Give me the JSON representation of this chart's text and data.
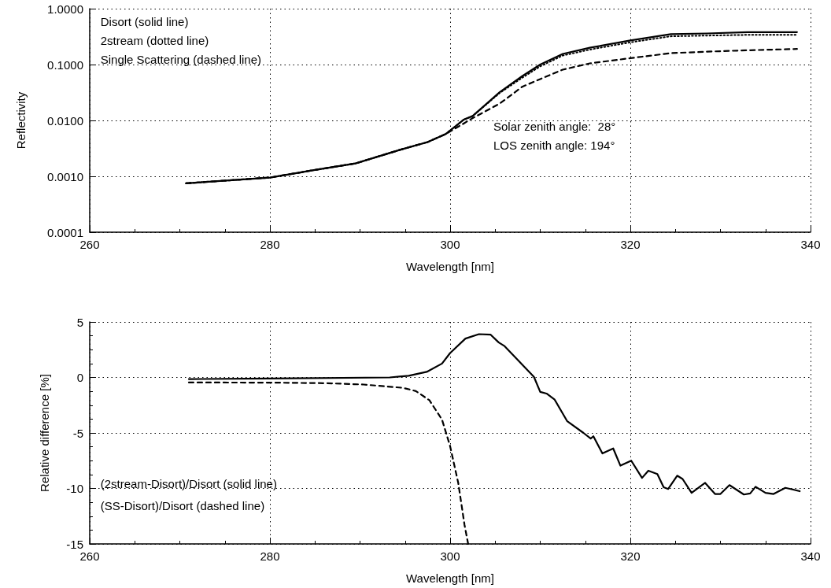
{
  "chart_data": [
    {
      "type": "line",
      "xlabel": "Wavelength [nm]",
      "ylabel": "Reflectivity",
      "log": "y",
      "grid": true,
      "xlim": [
        260,
        340
      ],
      "xticks": [
        260,
        280,
        300,
        320,
        340
      ],
      "ylim": [
        0.0001,
        1
      ],
      "yticks": [
        {
          "value": 0.0001,
          "label": "0.0001"
        },
        {
          "value": 0.001,
          "label": "0.0010"
        },
        {
          "value": 0.01,
          "label": "0.0100"
        },
        {
          "value": 0.1,
          "label": "0.1000"
        },
        {
          "value": 1,
          "label": "1.0000"
        }
      ],
      "annotations": [
        "Disort (solid line)",
        "2stream (dotted line)",
        "Single Scattering (dashed line)",
        "Solar zenith angle:  28°",
        "LOS zenith angle: 194°"
      ],
      "series": [
        {
          "color": "#000000",
          "line_style": "solid",
          "x": [
            270.7,
            280,
            285,
            289.5,
            294.5,
            297.5,
            299.5,
            301.5,
            302.5,
            305.5,
            308,
            310,
            312.5,
            315.5,
            320,
            324.5,
            328.5,
            333,
            338.5
          ],
          "values": [
            0.00075,
            0.00095,
            0.0013,
            0.0017,
            0.003,
            0.0041,
            0.0057,
            0.0103,
            0.012,
            0.032,
            0.062,
            0.1,
            0.155,
            0.2,
            0.27,
            0.35,
            0.36,
            0.38,
            0.38
          ]
        },
        {
          "color": "#000000",
          "line_style": "dotted",
          "x": [
            270.7,
            280,
            285,
            289.5,
            294.5,
            297.5,
            299.5,
            301.5,
            302.5,
            305.5,
            308,
            310,
            312.5,
            315.5,
            320,
            324.5,
            328.5,
            333,
            338.5
          ],
          "values": [
            0.00075,
            0.00095,
            0.0013,
            0.0017,
            0.003,
            0.0041,
            0.0057,
            0.0103,
            0.012,
            0.031,
            0.058,
            0.093,
            0.145,
            0.185,
            0.25,
            0.32,
            0.33,
            0.34,
            0.34
          ]
        },
        {
          "color": "#000000",
          "line_style": "dashed",
          "x": [
            270.7,
            280,
            285,
            289.5,
            294.5,
            297.5,
            299.5,
            301.5,
            302.5,
            305.5,
            308,
            310,
            312.5,
            315.5,
            320,
            324.5,
            328.5,
            333,
            338.5
          ],
          "values": [
            0.00075,
            0.00095,
            0.0013,
            0.0017,
            0.003,
            0.0041,
            0.0057,
            0.0088,
            0.011,
            0.02,
            0.04,
            0.055,
            0.081,
            0.105,
            0.13,
            0.16,
            0.17,
            0.18,
            0.19
          ]
        }
      ]
    },
    {
      "type": "line",
      "xlabel": "Wavelength [nm]",
      "ylabel": "Relative difference [%]",
      "grid": true,
      "xlim": [
        260,
        340
      ],
      "xticks": [
        260,
        280,
        300,
        320,
        340
      ],
      "ylim": [
        -15,
        5
      ],
      "yticks": [
        -15,
        -10,
        -5,
        0,
        5
      ],
      "annotations": [
        "(2stream-Disort)/Disort (solid line)",
        "(SS-Disort)/Disort (dashed line)"
      ],
      "series": [
        {
          "color": "#000000",
          "line_style": "solid",
          "x": [
            271,
            280,
            293.3,
            295.4,
            297.4,
            299.1,
            300,
            301.7,
            303.2,
            304.5,
            305.4,
            306,
            309.3,
            310,
            310.7,
            311.6,
            313,
            314.8,
            315.6,
            315.9,
            316.9,
            318.1,
            318.9,
            320.1,
            321.3,
            322,
            323,
            323.7,
            324.2,
            325.2,
            325.8,
            326.8,
            328.3,
            329.4,
            330,
            331,
            332.6,
            333.3,
            333.9,
            335,
            335.9,
            337.2,
            337.8,
            338.8
          ],
          "values": [
            -0.15,
            -0.1,
            0,
            0.15,
            0.5,
            1.25,
            2.2,
            3.5,
            3.9,
            3.85,
            3.15,
            2.85,
            0.05,
            -1.3,
            -1.45,
            -2,
            -3.95,
            -5,
            -5.5,
            -5.3,
            -6.85,
            -6.4,
            -7.95,
            -7.5,
            -9.05,
            -8.4,
            -8.7,
            -9.9,
            -10.05,
            -8.85,
            -9.15,
            -10.4,
            -9.5,
            -10.5,
            -10.5,
            -9.7,
            -10.55,
            -10.45,
            -9.85,
            -10.4,
            -10.5,
            -9.95,
            -10.05,
            -10.25
          ]
        },
        {
          "color": "#000000",
          "line_style": "dashed",
          "x": [
            271,
            280.3,
            286.4,
            290.4,
            294.8,
            296.2,
            297.7,
            299.1,
            300,
            300.9,
            301.6,
            302
          ],
          "values": [
            -0.45,
            -0.47,
            -0.52,
            -0.64,
            -0.94,
            -1.23,
            -2.05,
            -3.8,
            -6.2,
            -9.5,
            -13.3,
            -15
          ]
        }
      ]
    }
  ]
}
